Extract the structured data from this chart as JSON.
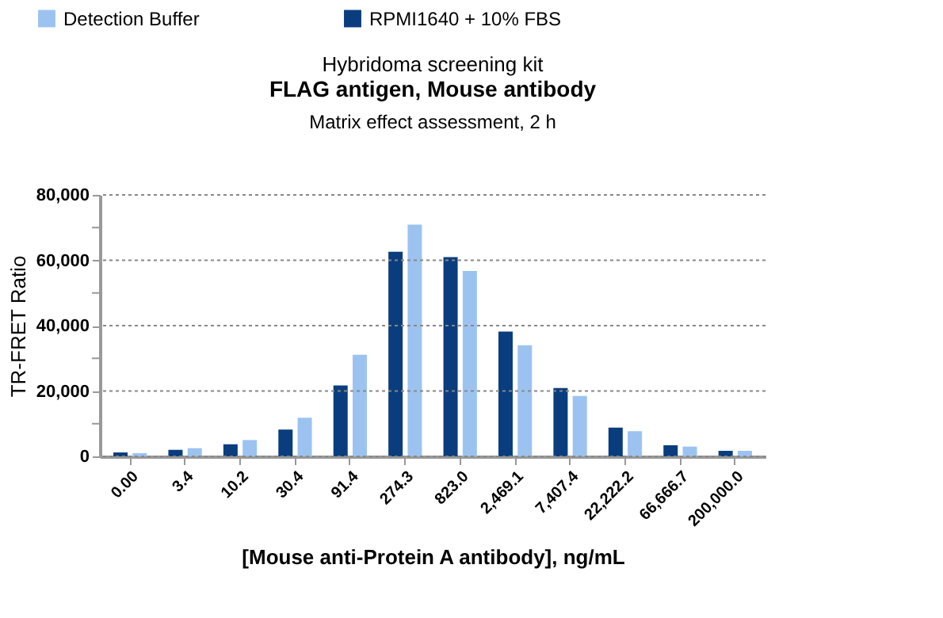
{
  "chart_data": {
    "type": "bar",
    "title": "FLAG antigen, Mouse antibody",
    "subtitle": "Matrix effect assessment, 2 h",
    "annotations": [
      "Hybridoma screening kit"
    ],
    "xlabel": "[Mouse anti-Protein A antibody], ng/mL",
    "ylabel": "TR-FRET Ratio",
    "categories": [
      "0.00",
      "3.4",
      "10.2",
      "30.4",
      "91.4",
      "274.3",
      "823.0",
      "2,469.1",
      "7,407.4",
      "22,222.2",
      "66,666.7",
      "200,000.0"
    ],
    "series": [
      {
        "name": "RPMI1640 + 10% FBS",
        "color": "#0a3d7e",
        "values": [
          1200,
          2000,
          3700,
          8200,
          21700,
          62600,
          61000,
          38200,
          20900,
          8800,
          3400,
          1700
        ]
      },
      {
        "name": "Detection Buffer",
        "color": "#9cc3f0",
        "values": [
          1000,
          2500,
          5000,
          11800,
          31100,
          70900,
          56700,
          34000,
          18500,
          7700,
          3000,
          1700
        ]
      }
    ],
    "ylim": [
      0,
      80000
    ],
    "yticks": [
      0,
      {
        "value": 10000,
        "label": null
      },
      {
        "value": 20000,
        "label": "20,000"
      },
      {
        "value": 30000,
        "label": null
      },
      {
        "value": 40000,
        "label": "40,000"
      },
      {
        "value": 50000,
        "label": null
      },
      {
        "value": 60000,
        "label": "60,000"
      },
      {
        "value": 70000,
        "label": null
      },
      {
        "value": 80000,
        "label": "80,000"
      }
    ],
    "grid": "y",
    "legend": "top"
  }
}
